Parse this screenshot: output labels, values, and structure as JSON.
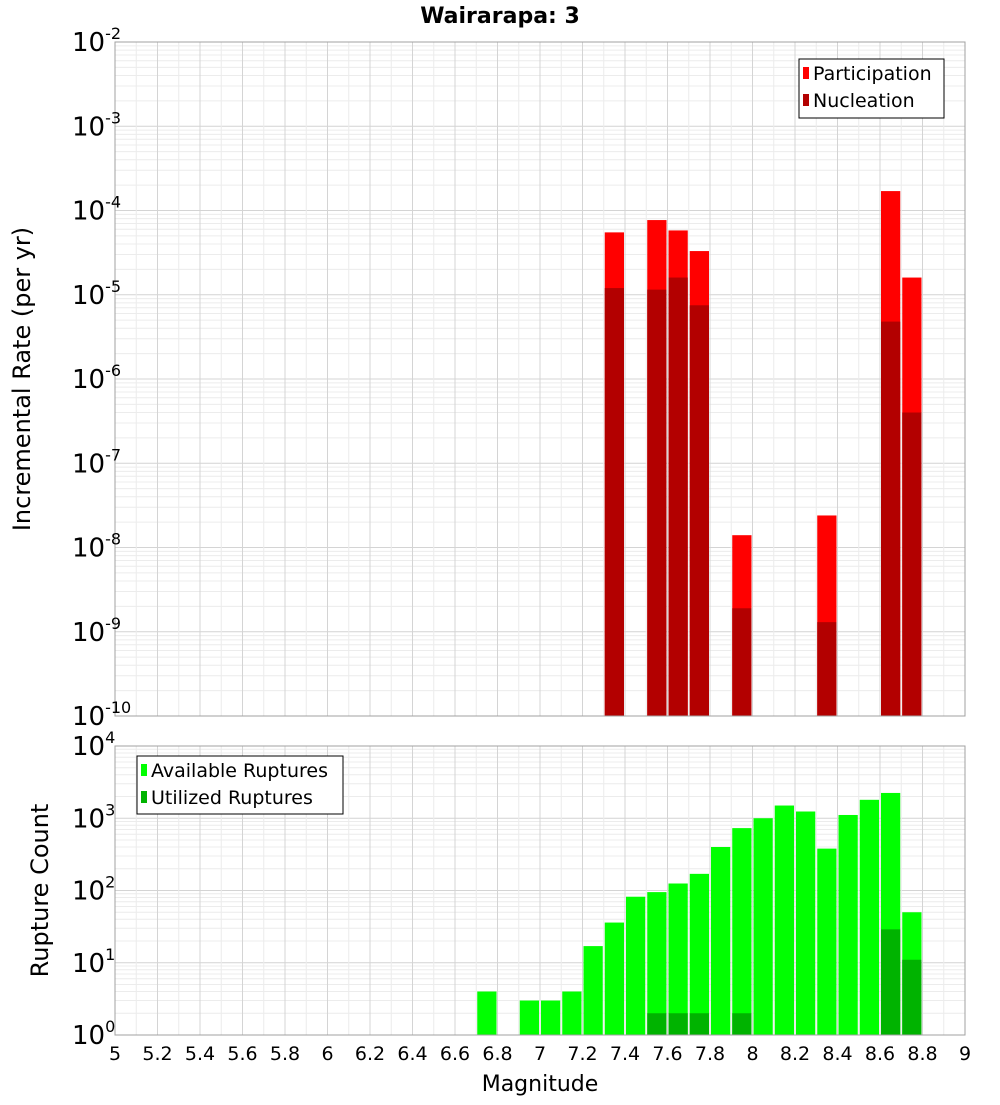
{
  "chart_data": {
    "title": "Wairarapa: 3",
    "xlabel": "Magnitude",
    "xlim": [
      5,
      9
    ],
    "x_ticks": [
      5,
      5.2,
      5.4,
      5.6,
      5.8,
      6,
      6.2,
      6.4,
      6.6,
      6.8,
      7,
      7.2,
      7.4,
      7.6,
      7.8,
      8,
      8.2,
      8.4,
      8.6,
      8.8,
      9
    ],
    "x_tick_labels": [
      "5",
      "5.2",
      "5.4",
      "5.6",
      "5.8",
      "6",
      "6.2",
      "6.4",
      "6.6",
      "6.8",
      "7",
      "7.2",
      "7.4",
      "7.6",
      "7.8",
      "8",
      "8.2",
      "8.4",
      "8.6",
      "8.8",
      "9"
    ],
    "panels": [
      {
        "id": "rate",
        "type": "bar",
        "ylabel": "Incremental Rate (per yr)",
        "yscale": "log",
        "ylim_exp": [
          -10,
          -2
        ],
        "grid": true,
        "legend_position": "top-right",
        "series": [
          {
            "name": "Participation",
            "color": "#ff0000",
            "points": [
              {
                "x": 7.35,
                "y": 5.5e-05
              },
              {
                "x": 7.55,
                "y": 7.7e-05
              },
              {
                "x": 7.65,
                "y": 5.8e-05
              },
              {
                "x": 7.75,
                "y": 3.3e-05
              },
              {
                "x": 7.95,
                "y": 1.4e-08
              },
              {
                "x": 8.35,
                "y": 2.4e-08
              },
              {
                "x": 8.65,
                "y": 0.00017
              },
              {
                "x": 8.75,
                "y": 1.6e-05
              }
            ]
          },
          {
            "name": "Nucleation",
            "color": "#b30000",
            "points": [
              {
                "x": 7.35,
                "y": 1.2e-05
              },
              {
                "x": 7.55,
                "y": 1.15e-05
              },
              {
                "x": 7.65,
                "y": 1.6e-05
              },
              {
                "x": 7.75,
                "y": 7.5e-06
              },
              {
                "x": 7.95,
                "y": 1.9e-09
              },
              {
                "x": 8.35,
                "y": 1.3e-09
              },
              {
                "x": 8.65,
                "y": 4.8e-06
              },
              {
                "x": 8.75,
                "y": 4e-07
              }
            ]
          }
        ]
      },
      {
        "id": "count",
        "type": "bar",
        "ylabel": "Rupture Count",
        "yscale": "log",
        "ylim_exp": [
          0,
          4
        ],
        "grid": true,
        "legend_position": "top-left",
        "series": [
          {
            "name": "Available Ruptures",
            "color": "#00ff00",
            "points": [
              {
                "x": 6.75,
                "y": 4
              },
              {
                "x": 6.95,
                "y": 3
              },
              {
                "x": 7.05,
                "y": 3
              },
              {
                "x": 7.15,
                "y": 4
              },
              {
                "x": 7.25,
                "y": 17
              },
              {
                "x": 7.35,
                "y": 36
              },
              {
                "x": 7.45,
                "y": 82
              },
              {
                "x": 7.55,
                "y": 95
              },
              {
                "x": 7.65,
                "y": 125
              },
              {
                "x": 7.75,
                "y": 170
              },
              {
                "x": 7.85,
                "y": 400
              },
              {
                "x": 7.95,
                "y": 730
              },
              {
                "x": 8.05,
                "y": 1000
              },
              {
                "x": 8.15,
                "y": 1500
              },
              {
                "x": 8.25,
                "y": 1240
              },
              {
                "x": 8.35,
                "y": 380
              },
              {
                "x": 8.45,
                "y": 1110
              },
              {
                "x": 8.55,
                "y": 1800
              },
              {
                "x": 8.65,
                "y": 2240
              },
              {
                "x": 8.75,
                "y": 50
              }
            ]
          },
          {
            "name": "Utilized Ruptures",
            "color": "#00b300",
            "points": [
              {
                "x": 7.35,
                "y": 1
              },
              {
                "x": 7.55,
                "y": 2
              },
              {
                "x": 7.65,
                "y": 2
              },
              {
                "x": 7.75,
                "y": 2
              },
              {
                "x": 7.95,
                "y": 2
              },
              {
                "x": 8.35,
                "y": 1
              },
              {
                "x": 8.65,
                "y": 29
              },
              {
                "x": 8.75,
                "y": 11
              }
            ]
          }
        ]
      }
    ]
  }
}
